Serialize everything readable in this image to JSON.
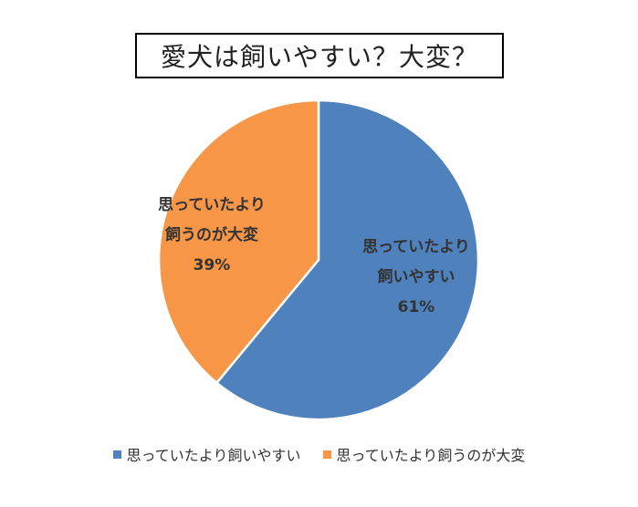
{
  "chart_data": {
    "type": "pie",
    "title": "愛犬は飼いやすい？大変？",
    "slices": [
      {
        "label": "思っていたより飼いやすい",
        "label_lines": [
          "思っていたより",
          "飼いやすい"
        ],
        "value": 61,
        "value_label": "61%",
        "color": "#4F81BD"
      },
      {
        "label": "思っていたより飼うのが大変",
        "label_lines": [
          "思っていたより",
          "飼うのが大変"
        ],
        "value": 39,
        "value_label": "39%",
        "color": "#F79646"
      }
    ],
    "start_angle": "12 o'clock",
    "direction": "clockwise",
    "legend_position": "bottom"
  }
}
